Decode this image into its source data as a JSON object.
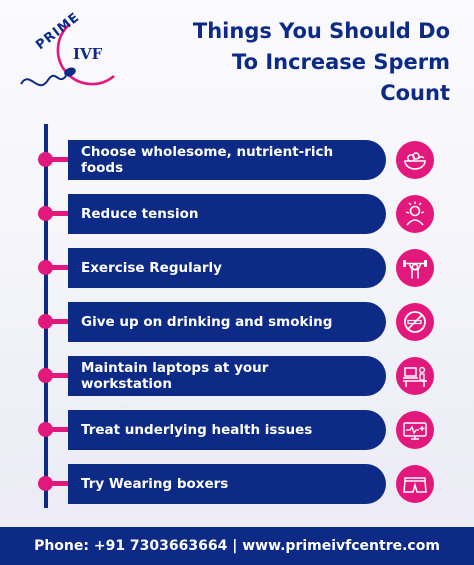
{
  "brand": {
    "word1": "PRIME",
    "word2": "IVF",
    "blue": "#0d2a86",
    "pink": "#e3187d"
  },
  "title": {
    "line1": "Things You Should Do",
    "line2": "To Increase Sperm",
    "line3": "Count"
  },
  "tips": [
    {
      "label": "Choose wholesome, nutrient-rich foods",
      "icon": "food-bowl-icon"
    },
    {
      "label": "Reduce tension",
      "icon": "stressed-person-icon"
    },
    {
      "label": "Exercise Regularly",
      "icon": "weightlifting-icon"
    },
    {
      "label": "Give up on drinking and smoking",
      "icon": "no-smoking-icon"
    },
    {
      "label": "Maintain laptops at your workstation",
      "icon": "laptop-desk-icon"
    },
    {
      "label": "Treat underlying health issues",
      "icon": "medical-monitor-icon"
    },
    {
      "label": "Try Wearing boxers",
      "icon": "boxers-icon"
    }
  ],
  "footer": {
    "contact": "Phone: +91 7303663664 | www.primeivfcentre.com"
  }
}
